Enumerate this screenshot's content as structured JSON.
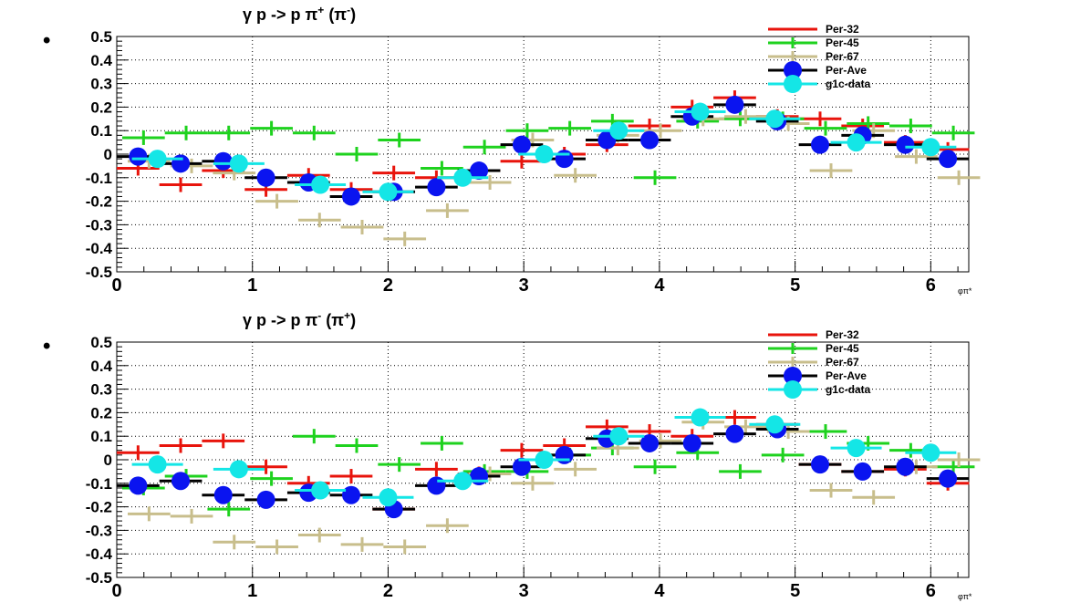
{
  "colors": {
    "per32": "#e8140c",
    "per45": "#1ed21e",
    "per67": "#c8be8c",
    "perave_line": "#000000",
    "perave_marker": "#0a14f0",
    "g1c": "#14e6e6",
    "grid": "#000000",
    "axis": "#000000"
  },
  "chart_data": [
    {
      "type": "scatter",
      "title_parts": [
        "γ p -> p π",
        "+",
        " (π",
        "-",
        ")"
      ],
      "bullet": "•",
      "xlabel": "φπ*",
      "xlim": [
        0,
        6.28
      ],
      "ylim": [
        -0.5,
        0.5
      ],
      "xticks": [
        "0",
        "1",
        "2",
        "3",
        "4",
        "5",
        "6"
      ],
      "yticks": [
        "-0.5",
        "-0.4",
        "-0.3",
        "-0.2",
        "-0.1",
        "0",
        "0.1",
        "0.2",
        "0.3",
        "0.4",
        "0.5"
      ],
      "grid": true,
      "legend_position": "top-right",
      "x": [
        0.157,
        0.471,
        0.785,
        1.1,
        1.414,
        1.728,
        2.042,
        2.356,
        2.67,
        2.985,
        3.299,
        3.613,
        3.927,
        4.241,
        4.555,
        4.869,
        5.184,
        5.498,
        5.812,
        6.126
      ],
      "series": [
        {
          "name": "Per-32",
          "values": [
            -0.06,
            -0.13,
            -0.07,
            -0.15,
            -0.09,
            -0.15,
            -0.08,
            -0.1,
            -0.07,
            -0.03,
            0.0,
            0.04,
            0.12,
            0.2,
            0.24,
            0.16,
            0.15,
            0.12,
            0.05,
            0.02
          ]
        },
        {
          "name": "Per-45",
          "values": [
            0.07,
            0.09,
            0.09,
            0.11,
            0.09,
            0.0,
            0.06,
            -0.06,
            0.03,
            0.1,
            0.11,
            0.14,
            -0.1,
            0.14,
            0.15,
            0.15,
            0.11,
            0.13,
            0.12,
            0.09
          ]
        },
        {
          "name": "Per-67",
          "values": [
            -0.03,
            -0.05,
            -0.08,
            -0.2,
            -0.28,
            -0.31,
            -0.36,
            -0.24,
            -0.12,
            0.06,
            -0.09,
            0.08,
            0.1,
            0.15,
            0.16,
            0.13,
            -0.07,
            0.1,
            -0.01,
            -0.1
          ]
        },
        {
          "name": "Per-Ave",
          "values": [
            -0.01,
            -0.04,
            -0.03,
            -0.1,
            -0.12,
            -0.18,
            -0.16,
            -0.14,
            -0.07,
            0.04,
            -0.02,
            0.06,
            0.06,
            0.16,
            0.21,
            0.14,
            0.04,
            0.08,
            0.04,
            -0.02
          ]
        }
      ],
      "g1c": {
        "name": "g1c-data",
        "x": [
          0.3,
          0.9,
          1.5,
          2.0,
          2.55,
          3.15,
          3.7,
          4.3,
          4.85,
          5.45,
          6.0
        ],
        "values": [
          -0.02,
          -0.04,
          -0.13,
          -0.16,
          -0.1,
          0.0,
          0.1,
          0.18,
          0.15,
          0.05,
          0.03
        ]
      }
    },
    {
      "type": "scatter",
      "title_parts": [
        "γ p -> p π",
        "-",
        " (π",
        "+",
        ")"
      ],
      "bullet": "•",
      "xlabel": "φπ*",
      "xlim": [
        0,
        6.28
      ],
      "ylim": [
        -0.5,
        0.5
      ],
      "xticks": [
        "0",
        "1",
        "2",
        "3",
        "4",
        "5",
        "6"
      ],
      "yticks": [
        "-0.5",
        "-0.4",
        "-0.3",
        "-0.2",
        "-0.1",
        "0",
        "0.1",
        "0.2",
        "0.3",
        "0.4",
        "0.5"
      ],
      "grid": true,
      "legend_position": "top-right",
      "x": [
        0.157,
        0.471,
        0.785,
        1.1,
        1.414,
        1.728,
        2.042,
        2.356,
        2.67,
        2.985,
        3.299,
        3.613,
        3.927,
        4.241,
        4.555,
        4.869,
        5.184,
        5.498,
        5.812,
        6.126
      ],
      "series": [
        {
          "name": "Per-32",
          "values": [
            0.03,
            0.06,
            0.08,
            -0.03,
            -0.1,
            -0.07,
            -0.21,
            -0.04,
            -0.06,
            0.04,
            0.06,
            0.14,
            0.12,
            0.1,
            0.18,
            0.15,
            -0.02,
            -0.05,
            -0.04,
            -0.1
          ]
        },
        {
          "name": "Per-45",
          "values": [
            -0.12,
            -0.07,
            -0.21,
            -0.08,
            0.1,
            0.06,
            -0.02,
            0.07,
            -0.05,
            -0.05,
            0.02,
            0.05,
            -0.03,
            0.03,
            -0.05,
            0.02,
            0.12,
            0.07,
            0.04,
            -0.03
          ]
        },
        {
          "name": "Per-67",
          "values": [
            -0.23,
            -0.24,
            -0.35,
            -0.37,
            -0.32,
            -0.36,
            -0.37,
            -0.28,
            -0.06,
            -0.1,
            -0.04,
            0.05,
            0.08,
            0.16,
            0.14,
            0.12,
            -0.13,
            -0.16,
            -0.03,
            0.0
          ]
        },
        {
          "name": "Per-Ave",
          "values": [
            -0.11,
            -0.09,
            -0.15,
            -0.17,
            -0.14,
            -0.15,
            -0.21,
            -0.11,
            -0.07,
            -0.03,
            0.02,
            0.09,
            0.07,
            0.07,
            0.11,
            0.13,
            -0.02,
            -0.05,
            -0.03,
            -0.08
          ]
        }
      ],
      "g1c": {
        "name": "g1c-data",
        "x": [
          0.3,
          0.9,
          1.5,
          2.0,
          2.55,
          3.15,
          3.7,
          4.3,
          4.85,
          5.45,
          6.0
        ],
        "values": [
          -0.02,
          -0.04,
          -0.13,
          -0.16,
          -0.09,
          0.0,
          0.1,
          0.18,
          0.15,
          0.05,
          0.03
        ]
      }
    }
  ]
}
